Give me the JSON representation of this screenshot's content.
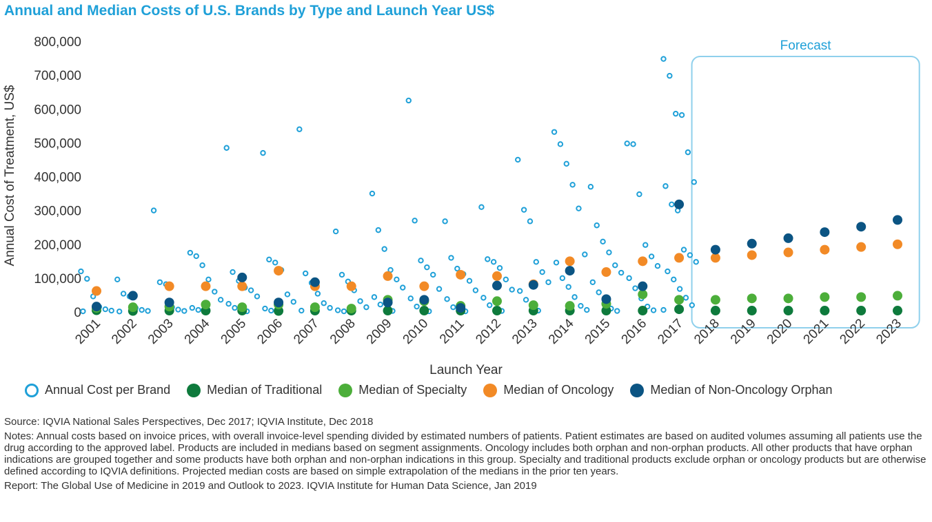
{
  "title": "Annual and Median Costs of U.S. Brands by Type and Launch Year US$",
  "chart_data": {
    "type": "scatter",
    "title": "Annual and Median Costs of U.S. Brands by Type and Launch Year US$",
    "xlabel": "Launch Year",
    "ylabel": "Annual Cost of Treatment, US$",
    "categories": [
      "2001",
      "2002",
      "2003",
      "2004",
      "2005",
      "2006",
      "2007",
      "2008",
      "2009",
      "2010",
      "2011",
      "2012",
      "2013",
      "2014",
      "2015",
      "2016",
      "2017",
      "2018",
      "2019",
      "2020",
      "2021",
      "2022",
      "2023"
    ],
    "ylim": [
      0,
      800000
    ],
    "yticks": [
      0,
      100000,
      200000,
      300000,
      400000,
      500000,
      600000,
      700000,
      800000
    ],
    "ytick_labels": [
      "0",
      "100,000",
      "200,000",
      "300,000",
      "400,000",
      "500,000",
      "600,000",
      "700,000",
      "800,000"
    ],
    "forecast_label": "Forecast",
    "forecast_range": [
      "2018",
      "2023"
    ],
    "colors": {
      "annual": "#1fa0d8",
      "traditional": "#0e7a3c",
      "specialty": "#4cae3a",
      "oncology": "#f28a26",
      "orphan": "#0b5483"
    },
    "series": [
      {
        "name": "Median of Traditional",
        "key": "traditional",
        "values": [
          5000,
          3000,
          4000,
          4000,
          4000,
          3000,
          4000,
          4000,
          4000,
          4000,
          4000,
          4000,
          4000,
          4000,
          4000,
          4000,
          8000,
          4000,
          4000,
          4000,
          4000,
          4000,
          4000
        ]
      },
      {
        "name": "Median of Specialty",
        "key": "specialty",
        "values": [
          12000,
          14000,
          16000,
          22000,
          14000,
          22000,
          14000,
          10000,
          36000,
          32000,
          18000,
          32000,
          20000,
          18000,
          24000,
          52000,
          36000,
          36000,
          40000,
          40000,
          44000,
          44000,
          48000
        ]
      },
      {
        "name": "Median of Oncology",
        "key": "oncology",
        "values": [
          62000,
          null,
          76000,
          76000,
          76000,
          122000,
          76000,
          76000,
          106000,
          76000,
          110000,
          106000,
          82000,
          150000,
          118000,
          150000,
          160000,
          160000,
          168000,
          176000,
          184000,
          192000,
          200000
        ]
      },
      {
        "name": "Median of Non-Oncology Orphan",
        "key": "orphan",
        "values": [
          16000,
          48000,
          28000,
          null,
          102000,
          28000,
          88000,
          null,
          28000,
          36000,
          12000,
          78000,
          80000,
          122000,
          38000,
          76000,
          318000,
          184000,
          202000,
          218000,
          236000,
          252000,
          272000
        ]
      }
    ],
    "annual_points": [
      {
        "x": "2001",
        "values": [
          120000,
          98000,
          46000,
          15000,
          8000,
          4000,
          2000
        ]
      },
      {
        "x": "2002",
        "values": [
          96000,
          54000,
          46000,
          12000,
          6000,
          3000,
          1500
        ]
      },
      {
        "x": "2003",
        "values": [
          300000,
          88000,
          82000,
          14000,
          7000,
          3000
        ]
      },
      {
        "x": "2004",
        "values": [
          175000,
          165000,
          138000,
          96000,
          60000,
          36000,
          12000,
          6000,
          2000
        ]
      },
      {
        "x": "2005",
        "values": [
          485000,
          118000,
          92000,
          72000,
          64000,
          46000,
          24000,
          12000,
          5000,
          2000
        ]
      },
      {
        "x": "2006",
        "values": [
          470000,
          155000,
          146000,
          124000,
          52000,
          30000,
          10000,
          4000
        ]
      },
      {
        "x": "2007",
        "values": [
          540000,
          114000,
          86000,
          54000,
          26000,
          12000,
          4000
        ]
      },
      {
        "x": "2008",
        "values": [
          238000,
          110000,
          90000,
          64000,
          32000,
          14000,
          5000,
          2000
        ]
      },
      {
        "x": "2009",
        "values": [
          350000,
          242000,
          186000,
          124000,
          96000,
          72000,
          44000,
          22000,
          8000,
          3000
        ]
      },
      {
        "x": "2010",
        "values": [
          625000,
          270000,
          152000,
          132000,
          110000,
          68000,
          40000,
          16000,
          6000,
          2000
        ]
      },
      {
        "x": "2011",
        "values": [
          268000,
          160000,
          128000,
          112000,
          92000,
          64000,
          38000,
          14000,
          5000,
          2000
        ]
      },
      {
        "x": "2012",
        "values": [
          310000,
          156000,
          148000,
          130000,
          96000,
          66000,
          42000,
          20000,
          8000,
          3000
        ]
      },
      {
        "x": "2013",
        "values": [
          450000,
          302000,
          268000,
          148000,
          118000,
          88000,
          62000,
          36000,
          14000,
          4000
        ]
      },
      {
        "x": "2014",
        "values": [
          532000,
          496000,
          438000,
          376000,
          306000,
          170000,
          146000,
          100000,
          74000,
          44000,
          18000,
          6000
        ]
      },
      {
        "x": "2015",
        "values": [
          370000,
          256000,
          208000,
          176000,
          138000,
          116000,
          88000,
          58000,
          28000,
          10000,
          3000
        ]
      },
      {
        "x": "2016",
        "values": [
          498000,
          496000,
          348000,
          198000,
          164000,
          136000,
          100000,
          70000,
          40000,
          16000,
          5000
        ]
      },
      {
        "x": "2017",
        "values": [
          748000,
          698000,
          586000,
          582000,
          472000,
          384000,
          372000,
          318000,
          300000,
          184000,
          168000,
          148000,
          120000,
          96000,
          68000,
          42000,
          20000,
          6000
        ]
      }
    ]
  },
  "legend": {
    "annual": "Annual Cost per Brand",
    "traditional": "Median of Traditional",
    "specialty": "Median of Specialty",
    "oncology": "Median of Oncology",
    "orphan": "Median of Non-Oncology Orphan"
  },
  "footnotes": {
    "source": "Source: IQVIA National Sales Perspectives, Dec 2017; IQVIA Institute, Dec 2018",
    "notes": "Notes: Annual costs based on invoice prices, with overall invoice-level spending divided by estimated numbers of patients. Patient estimates are based on audited volumes assuming all patients use the drug according to the approved label. Products are included in medians based on segment assignments. Oncology includes both orphan and non-orphan products. All other products that have orphan indications are grouped together and some products have both orphan and non-orphan indications in this group. Specialty and traditional products exclude orphan or oncology products but are otherwise defined according to IQVIA definitions. Projected median costs are based on simple extrapolation of the medians in the prior ten years.",
    "report": "Report: The Global Use of Medicine in 2019 and Outlook to 2023. IQVIA Institute for Human Data Science, Jan 2019"
  }
}
